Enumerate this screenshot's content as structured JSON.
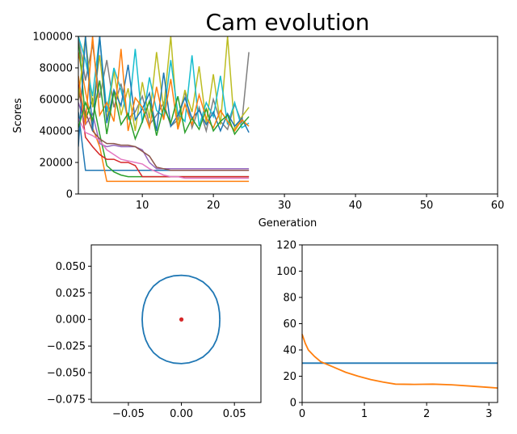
{
  "chart_data": [
    {
      "type": "line",
      "title": "Cam evolution",
      "xlabel": "Generation",
      "ylabel": "Scores",
      "xlim": [
        1,
        60
      ],
      "ylim": [
        0,
        100000
      ],
      "xticks": [
        10,
        20,
        30,
        40,
        50,
        60
      ],
      "yticks": [
        0,
        20000,
        40000,
        60000,
        80000,
        100000
      ],
      "colors": [
        "#1f77b4",
        "#ff7f0e",
        "#2ca02c",
        "#d62728",
        "#9467bd",
        "#8c564b",
        "#e377c2",
        "#7f7f7f",
        "#bcbd22",
        "#17becf"
      ],
      "series": [
        {
          "values": [
            52000,
            15000,
            15000,
            15000,
            15000,
            15000,
            15000,
            15000,
            15000,
            15000,
            15000,
            15000,
            15000,
            15000,
            15000,
            15000,
            15000,
            15000,
            15000,
            15000,
            15000,
            15000,
            15000,
            15000,
            15000
          ]
        },
        {
          "values": [
            90000,
            65000,
            42000,
            30000,
            8000,
            8000,
            8000,
            8000,
            8000,
            8000,
            8000,
            8000,
            8000,
            8000,
            8000,
            8000,
            8000,
            8000,
            8000,
            8000,
            8000,
            8000,
            8000,
            8000,
            8000
          ]
        },
        {
          "values": [
            100000,
            47000,
            60000,
            38000,
            18000,
            14000,
            12000,
            11000,
            11000,
            11000,
            11000,
            11000,
            11000,
            11000,
            11000,
            11000,
            11000,
            11000,
            11000,
            11000,
            11000,
            11000,
            11000,
            11000,
            11000
          ]
        },
        {
          "values": [
            70000,
            36000,
            30000,
            25000,
            22000,
            22000,
            20000,
            20000,
            18000,
            11000,
            11000,
            11000,
            11000,
            11000,
            11000,
            11000,
            11000,
            11000,
            11000,
            11000,
            11000,
            11000,
            11000,
            11000,
            11000
          ]
        },
        {
          "values": [
            58000,
            44000,
            51000,
            32000,
            30000,
            31000,
            30000,
            30000,
            30000,
            28000,
            20000,
            16000,
            16000,
            16000,
            16000,
            16000,
            16000,
            16000,
            16000,
            16000,
            16000,
            16000,
            16000,
            16000,
            16000
          ]
        },
        {
          "values": [
            64000,
            52000,
            40000,
            35000,
            32000,
            32000,
            31000,
            31000,
            30000,
            27000,
            24000,
            17000,
            16000,
            15000,
            15000,
            15000,
            15000,
            15000,
            15000,
            15000,
            15000,
            15000,
            15000,
            15000,
            15000
          ]
        },
        {
          "values": [
            48000,
            39000,
            37000,
            34000,
            28000,
            25000,
            22000,
            21000,
            20000,
            19000,
            16000,
            14000,
            12000,
            11000,
            11000,
            10000,
            10000,
            10000,
            10000,
            10000,
            10000,
            10000,
            10000,
            10000,
            10000
          ]
        },
        {
          "values": [
            100000,
            72000,
            95000,
            61000,
            85000,
            55000,
            70000,
            48000,
            52000,
            62000,
            44000,
            50000,
            58000,
            43000,
            47000,
            65000,
            42000,
            55000,
            40000,
            60000,
            46000,
            41000,
            57000,
            45000,
            90000
          ]
        },
        {
          "values": [
            60000,
            100000,
            55000,
            88000,
            47000,
            78000,
            50000,
            67000,
            40000,
            71000,
            48000,
            90000,
            54000,
            100000,
            42000,
            66000,
            52000,
            81000,
            45000,
            76000,
            44000,
            100000,
            41000,
            49000,
            55000
          ]
        },
        {
          "values": [
            100000,
            85000,
            62000,
            100000,
            52000,
            80000,
            66000,
            47000,
            92000,
            45000,
            74000,
            53000,
            49000,
            85000,
            51000,
            46000,
            88000,
            43000,
            58000,
            49000,
            75000,
            44000,
            58000,
            42000,
            45000
          ]
        },
        {
          "values": [
            30000,
            100000,
            40000,
            100000,
            45000,
            66000,
            56000,
            82000,
            47000,
            54000,
            64000,
            40000,
            77000,
            43000,
            50000,
            61000,
            48000,
            53000,
            44000,
            52000,
            40000,
            51000,
            43000,
            48000,
            39000
          ]
        },
        {
          "values": [
            75000,
            44000,
            100000,
            50000,
            58000,
            46000,
            92000,
            40000,
            61000,
            55000,
            42000,
            68000,
            47000,
            73000,
            41000,
            57000,
            44000,
            63000,
            48000,
            42000,
            53000,
            46000,
            40000,
            47000,
            43000
          ]
        },
        {
          "values": [
            42000,
            58000,
            47000,
            72000,
            38000,
            65000,
            44000,
            51000,
            35000,
            46000,
            59000,
            37000,
            55000,
            45000,
            62000,
            39000,
            48000,
            41000,
            54000,
            40000,
            46000,
            50000,
            38000,
            44000,
            49000
          ]
        }
      ]
    },
    {
      "type": "line",
      "title": "",
      "xlabel": "",
      "ylabel": "",
      "xlim": [
        -0.085,
        0.075
      ],
      "ylim": [
        -0.078,
        0.07
      ],
      "xticks": [
        -0.05,
        0.0,
        0.05
      ],
      "xtick_labels": [
        "−0.05",
        "0.00",
        "0.05"
      ],
      "yticks": [
        -0.075,
        -0.05,
        -0.025,
        0.0,
        0.025,
        0.05
      ],
      "ytick_labels": [
        "−0.075",
        "−0.050",
        "−0.025",
        "0.000",
        "0.025",
        "0.050"
      ],
      "colors": [
        "#1f77b4",
        "#d62728"
      ],
      "cam_profile_polar": {
        "theta_deg": [
          0,
          10,
          20,
          30,
          40,
          50,
          60,
          70,
          80,
          90,
          100,
          110,
          120,
          130,
          140,
          150,
          160,
          170,
          180,
          190,
          200,
          210,
          220,
          230,
          240,
          250,
          260,
          270,
          280,
          290,
          300,
          310,
          320,
          330,
          340,
          350,
          360
        ],
        "r": [
          0.0362,
          0.0365,
          0.0372,
          0.0382,
          0.0392,
          0.04,
          0.0407,
          0.0411,
          0.0414,
          0.0415,
          0.0416,
          0.0416,
          0.0414,
          0.0408,
          0.0398,
          0.0388,
          0.0378,
          0.0372,
          0.037,
          0.0372,
          0.0378,
          0.0388,
          0.0398,
          0.0408,
          0.0414,
          0.0416,
          0.0416,
          0.0415,
          0.0414,
          0.0411,
          0.0407,
          0.04,
          0.0392,
          0.0382,
          0.0372,
          0.0365,
          0.0362
        ]
      },
      "center_point": {
        "x": 0.0,
        "y": 0.0
      }
    },
    {
      "type": "line",
      "title": "",
      "xlabel": "",
      "ylabel": "",
      "xlim": [
        0,
        3.14
      ],
      "ylim": [
        0,
        120
      ],
      "xticks": [
        0,
        1,
        2,
        3
      ],
      "yticks": [
        0,
        20,
        40,
        60,
        80,
        100,
        120
      ],
      "colors": [
        "#1f77b4",
        "#ff7f0e"
      ],
      "series": [
        {
          "x": [
            0,
            3.14
          ],
          "y": [
            30,
            30
          ]
        },
        {
          "x": [
            0,
            0.05,
            0.1,
            0.2,
            0.3,
            0.5,
            0.7,
            0.9,
            1.1,
            1.3,
            1.5,
            1.8,
            2.1,
            2.4,
            2.7,
            3.0,
            3.14
          ],
          "y": [
            52,
            45,
            40,
            35,
            31,
            27,
            23,
            20,
            17.5,
            15.5,
            14,
            13.8,
            14,
            13.5,
            12.5,
            11.5,
            11
          ]
        }
      ]
    }
  ]
}
